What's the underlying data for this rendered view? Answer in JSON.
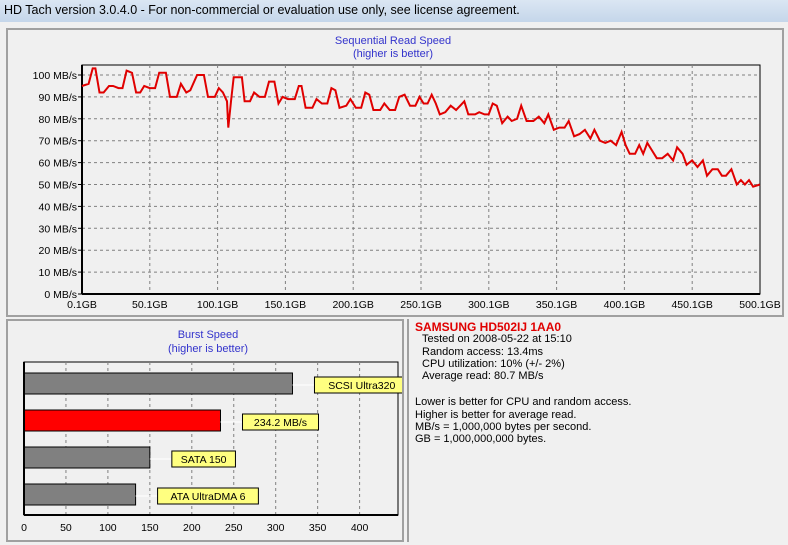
{
  "window": {
    "title": "HD Tach version 3.0.4.0  - For non-commercial or evaluation use only, see license agreement."
  },
  "chart_data": [
    {
      "type": "line",
      "title": "Sequential Read Speed",
      "subtitle": "(higher is better)",
      "xlabel": "",
      "ylabel": "",
      "xlim": [
        0.1,
        500.1
      ],
      "ylim": [
        0,
        105
      ],
      "grid": true,
      "line_color": "#e00000",
      "x_ticks": [
        "0.1GB",
        "50.1GB",
        "100.1GB",
        "150.1GB",
        "200.1GB",
        "250.1GB",
        "300.1GB",
        "350.1GB",
        "400.1GB",
        "450.1GB",
        "500.1GB"
      ],
      "y_ticks": [
        "0 MB/s",
        "10 MB/s",
        "20 MB/s",
        "30 MB/s",
        "40 MB/s",
        "50 MB/s",
        "60 MB/s",
        "70 MB/s",
        "80 MB/s",
        "90 MB/s",
        "100 MB/s"
      ],
      "points": [
        [
          0,
          95
        ],
        [
          5,
          96
        ],
        [
          8,
          103
        ],
        [
          10,
          103
        ],
        [
          13,
          92
        ],
        [
          16,
          92
        ],
        [
          20,
          95
        ],
        [
          23,
          95
        ],
        [
          27,
          94
        ],
        [
          30,
          94
        ],
        [
          33,
          102
        ],
        [
          37,
          101
        ],
        [
          40,
          92
        ],
        [
          43,
          92
        ],
        [
          46,
          95
        ],
        [
          50,
          94
        ],
        [
          54,
          94
        ],
        [
          57,
          101
        ],
        [
          62,
          101
        ],
        [
          65,
          90
        ],
        [
          70,
          90
        ],
        [
          73,
          96
        ],
        [
          77,
          92
        ],
        [
          80,
          93
        ],
        [
          85,
          100
        ],
        [
          90,
          100
        ],
        [
          93,
          90
        ],
        [
          98,
          90
        ],
        [
          101,
          94
        ],
        [
          104,
          92
        ],
        [
          107,
          88
        ],
        [
          108,
          76
        ],
        [
          110,
          88
        ],
        [
          112,
          99
        ],
        [
          118,
          99
        ],
        [
          120,
          88
        ],
        [
          124,
          88
        ],
        [
          127,
          92
        ],
        [
          131,
          90
        ],
        [
          135,
          90
        ],
        [
          138,
          97
        ],
        [
          142,
          97
        ],
        [
          145,
          87
        ],
        [
          148,
          90
        ],
        [
          152,
          89
        ],
        [
          157,
          89
        ],
        [
          160,
          95
        ],
        [
          162,
          95
        ],
        [
          165,
          85
        ],
        [
          170,
          85
        ],
        [
          173,
          89
        ],
        [
          177,
          87
        ],
        [
          181,
          87
        ],
        [
          184,
          94
        ],
        [
          187,
          93
        ],
        [
          190,
          85
        ],
        [
          195,
          86
        ],
        [
          198,
          89
        ],
        [
          202,
          85
        ],
        [
          206,
          85
        ],
        [
          209,
          92
        ],
        [
          212,
          91
        ],
        [
          215,
          84
        ],
        [
          220,
          84
        ],
        [
          223,
          87
        ],
        [
          227,
          84
        ],
        [
          231,
          84
        ],
        [
          234,
          90
        ],
        [
          238,
          91
        ],
        [
          242,
          86
        ],
        [
          246,
          86
        ],
        [
          249,
          90
        ],
        [
          252,
          87
        ],
        [
          255,
          87
        ],
        [
          258,
          91
        ],
        [
          261,
          87
        ],
        [
          264,
          82
        ],
        [
          268,
          83
        ],
        [
          272,
          86
        ],
        [
          276,
          84
        ],
        [
          279,
          86
        ],
        [
          282,
          88
        ],
        [
          285,
          82
        ],
        [
          290,
          82
        ],
        [
          293,
          83
        ],
        [
          297,
          82
        ],
        [
          300,
          82
        ],
        [
          303,
          87
        ],
        [
          306,
          86
        ],
        [
          310,
          78
        ],
        [
          314,
          81
        ],
        [
          317,
          79
        ],
        [
          321,
          80
        ],
        [
          324,
          86
        ],
        [
          328,
          79
        ],
        [
          333,
          79
        ],
        [
          337,
          81
        ],
        [
          341,
          78
        ],
        [
          344,
          82
        ],
        [
          348,
          75
        ],
        [
          352,
          76
        ],
        [
          356,
          76
        ],
        [
          359,
          79
        ],
        [
          363,
          72
        ],
        [
          367,
          73
        ],
        [
          371,
          75
        ],
        [
          375,
          71
        ],
        [
          378,
          75
        ],
        [
          382,
          70
        ],
        [
          386,
          69
        ],
        [
          390,
          70
        ],
        [
          394,
          68
        ],
        [
          398,
          74
        ],
        [
          401,
          68
        ],
        [
          404,
          64
        ],
        [
          408,
          64
        ],
        [
          411,
          68
        ],
        [
          414,
          64
        ],
        [
          417,
          69
        ],
        [
          420,
          66
        ],
        [
          424,
          62
        ],
        [
          428,
          62
        ],
        [
          432,
          64
        ],
        [
          436,
          61
        ],
        [
          439,
          67
        ],
        [
          443,
          64
        ],
        [
          446,
          59
        ],
        [
          450,
          61
        ],
        [
          454,
          58
        ],
        [
          458,
          61
        ],
        [
          461,
          54
        ],
        [
          465,
          57
        ],
        [
          469,
          57
        ],
        [
          472,
          54
        ],
        [
          475,
          54
        ],
        [
          479,
          57
        ],
        [
          483,
          50
        ],
        [
          486,
          52
        ],
        [
          489,
          50
        ],
        [
          492,
          52
        ],
        [
          495,
          49
        ],
        [
          500,
          50
        ]
      ]
    },
    {
      "type": "bar",
      "orientation": "horizontal",
      "title": "Burst Speed",
      "subtitle": "(higher is better)",
      "xlim": [
        0,
        440
      ],
      "grid": true,
      "x_ticks": [
        "0",
        "50",
        "100",
        "150",
        "200",
        "250",
        "300",
        "350",
        "400"
      ],
      "bars": [
        {
          "label": "SCSI Ultra320",
          "value": 320,
          "color": "#808080"
        },
        {
          "label": "234.2 MB/s",
          "value": 234.2,
          "color": "#ff0000"
        },
        {
          "label": "SATA 150",
          "value": 150,
          "color": "#808080"
        },
        {
          "label": "ATA UltraDMA 6",
          "value": 133,
          "color": "#808080"
        }
      ]
    }
  ],
  "info": {
    "drive": "SAMSUNG HD502IJ 1AA0",
    "tested": "Tested on 2008-05-22 at 15:10",
    "random_access": "Random access: 13.4ms",
    "cpu": "CPU utilization: 10% (+/- 2%)",
    "average": "Average read: 80.7 MB/s",
    "notes": [
      "Lower is better for CPU and random access.",
      "Higher is better for average read.",
      "MB/s = 1,000,000 bytes per second.",
      "GB = 1,000,000,000 bytes."
    ]
  }
}
